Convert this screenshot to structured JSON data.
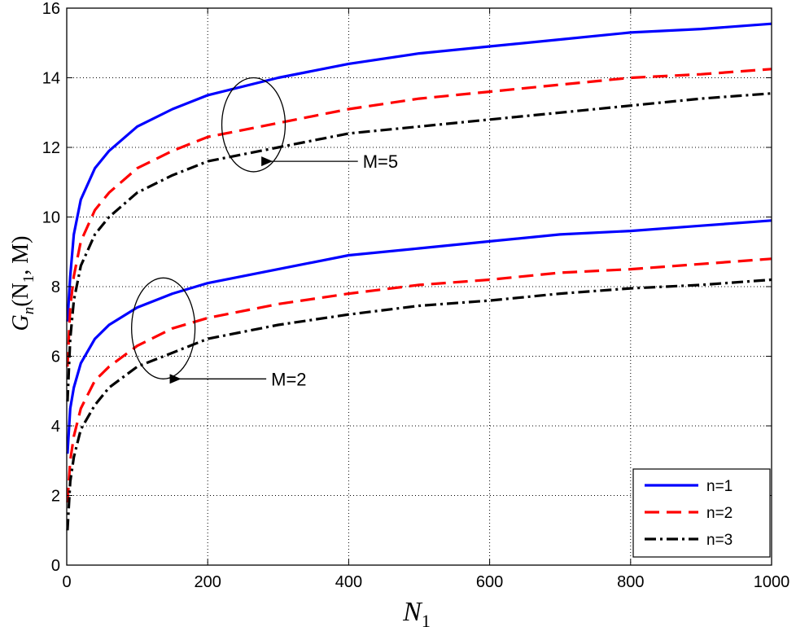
{
  "chart_data": {
    "type": "line",
    "xlabel": "N",
    "xlabel_sub": "1",
    "ylabel_main": "G",
    "ylabel_sub": "n",
    "ylabel_args": "(N",
    "ylabel_args_sub": "1",
    "ylabel_tail": ", M)",
    "xlim": [
      0,
      1000
    ],
    "ylim": [
      0,
      16
    ],
    "xticks": [
      "0",
      "200",
      "400",
      "600",
      "800",
      "1000"
    ],
    "yticks": [
      "0",
      "2",
      "4",
      "6",
      "8",
      "10",
      "12",
      "14",
      "16"
    ],
    "grid": true,
    "legend_position": "bottom-right",
    "x": [
      1,
      5,
      10,
      20,
      40,
      60,
      100,
      150,
      200,
      300,
      400,
      500,
      600,
      700,
      800,
      900,
      1000
    ],
    "series": [
      {
        "name": "n=1",
        "group": "M=5",
        "color": "#0000ff",
        "style": "solid",
        "values": [
          7.0,
          8.3,
          9.5,
          10.5,
          11.4,
          11.9,
          12.6,
          13.1,
          13.5,
          14.0,
          14.4,
          14.7,
          14.9,
          15.1,
          15.3,
          15.4,
          15.55
        ]
      },
      {
        "name": "n=2",
        "group": "M=5",
        "color": "#ff0000",
        "style": "dashed",
        "values": [
          5.7,
          7.4,
          8.3,
          9.3,
          10.2,
          10.7,
          11.4,
          11.9,
          12.3,
          12.7,
          13.1,
          13.4,
          13.6,
          13.8,
          14.0,
          14.1,
          14.25
        ]
      },
      {
        "name": "n=3",
        "group": "M=5",
        "color": "#000000",
        "style": "dashdot",
        "values": [
          4.7,
          6.5,
          7.6,
          8.6,
          9.5,
          10.0,
          10.7,
          11.2,
          11.6,
          12.0,
          12.4,
          12.6,
          12.8,
          13.0,
          13.2,
          13.4,
          13.55
        ]
      },
      {
        "name": "n=1",
        "group": "M=2",
        "color": "#0000ff",
        "style": "solid",
        "values": [
          3.2,
          4.5,
          5.1,
          5.8,
          6.5,
          6.9,
          7.4,
          7.8,
          8.1,
          8.5,
          8.9,
          9.1,
          9.3,
          9.5,
          9.6,
          9.75,
          9.9
        ]
      },
      {
        "name": "n=2",
        "group": "M=2",
        "color": "#ff0000",
        "style": "dashed",
        "values": [
          1.8,
          3.0,
          3.7,
          4.5,
          5.3,
          5.7,
          6.3,
          6.8,
          7.1,
          7.5,
          7.8,
          8.05,
          8.2,
          8.4,
          8.5,
          8.65,
          8.8
        ]
      },
      {
        "name": "n=3",
        "group": "M=2",
        "color": "#000000",
        "style": "dashdot",
        "values": [
          1.0,
          2.4,
          3.1,
          3.9,
          4.6,
          5.1,
          5.7,
          6.1,
          6.5,
          6.9,
          7.2,
          7.45,
          7.6,
          7.8,
          7.95,
          8.05,
          8.2
        ]
      }
    ],
    "legend": [
      {
        "label": "n=1",
        "color": "#0000ff",
        "style": "solid"
      },
      {
        "label": "n=2",
        "color": "#ff0000",
        "style": "dashed"
      },
      {
        "label": "n=3",
        "color": "#000000",
        "style": "dashdot"
      }
    ],
    "annotations": [
      {
        "text": "M=5",
        "ellipse_center": [
          265,
          12.65
        ],
        "ellipse_rx": 45,
        "ellipse_ry": 1.35,
        "arrow_tip": [
          290,
          11.6
        ],
        "label_at": [
          420,
          11.6
        ]
      },
      {
        "text": "M=2",
        "ellipse_center": [
          137,
          6.8
        ],
        "ellipse_rx": 45,
        "ellipse_ry": 1.45,
        "arrow_tip": [
          160,
          5.35
        ],
        "label_at": [
          290,
          5.35
        ]
      }
    ]
  }
}
